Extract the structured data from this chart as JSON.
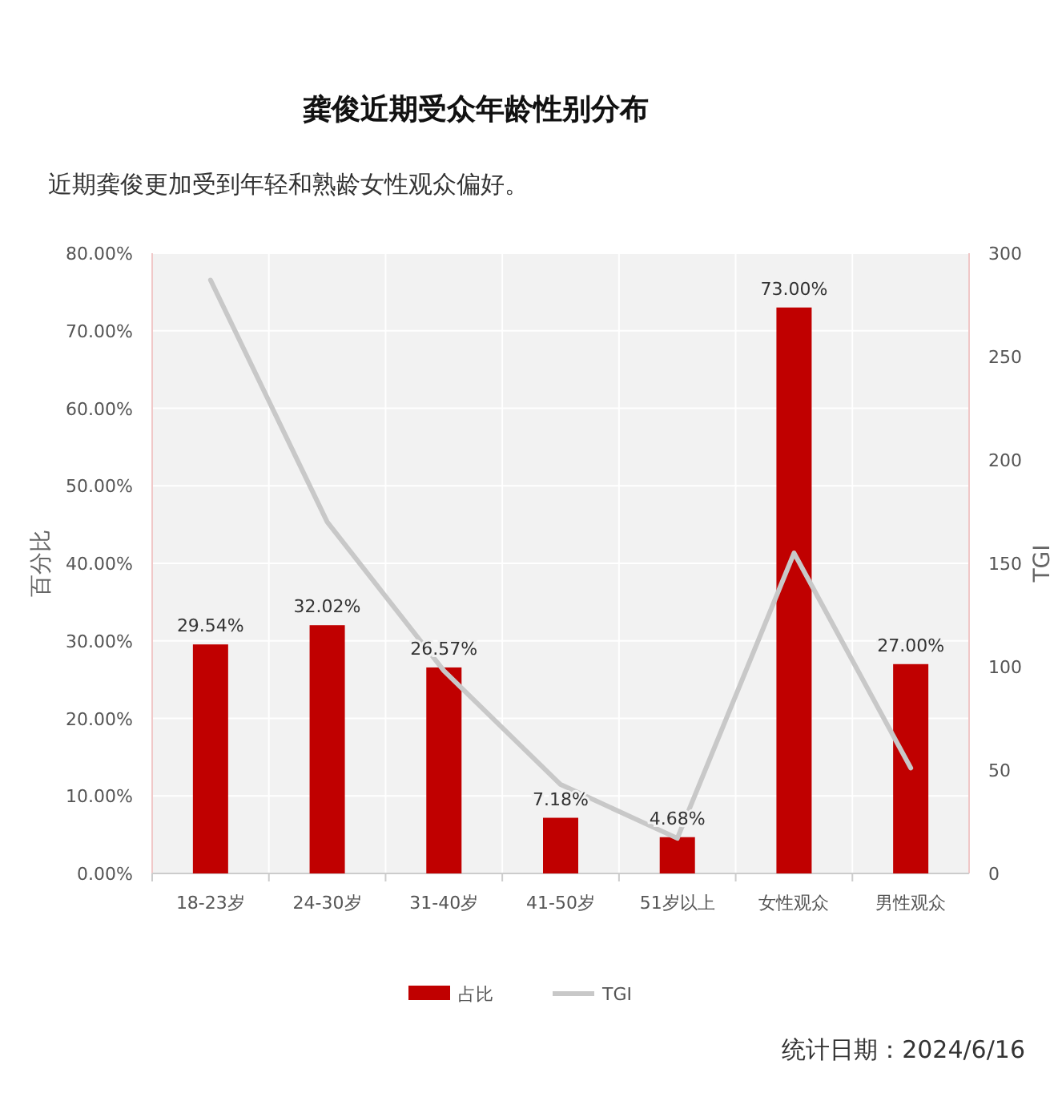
{
  "chart_data": {
    "type": "bar",
    "title": "龚俊近期受众年龄性别分布",
    "subtitle": "近期龚俊更加受到年轻和熟龄女性观众偏好。",
    "ylabel": "百分比",
    "y2label": "TGI",
    "categories": [
      "18-23岁",
      "24-30岁",
      "31-40岁",
      "41-50岁",
      "51岁以上",
      "女性观众",
      "男性观众"
    ],
    "series": [
      {
        "name": "占比",
        "color": "#c00000",
        "values": [
          29.54,
          32.02,
          26.57,
          7.18,
          4.68,
          73.0,
          27.0
        ],
        "value_labels": [
          "29.54%",
          "32.02%",
          "26.57%",
          "7.18%",
          "4.68%",
          "73.00%",
          "27.00%"
        ]
      },
      {
        "name": "TGI",
        "type": "line",
        "axis": "y2",
        "color": "#c8c8c8",
        "values": [
          287,
          170,
          98,
          43,
          17,
          155,
          51
        ]
      }
    ],
    "ylim": [
      0,
      80
    ],
    "yticks": [
      {
        "value": 0,
        "label": "0.00%"
      },
      {
        "value": 10,
        "label": "10.00%"
      },
      {
        "value": 20,
        "label": "20.00%"
      },
      {
        "value": 30,
        "label": "30.00%"
      },
      {
        "value": 40,
        "label": "40.00%"
      },
      {
        "value": 50,
        "label": "50.00%"
      },
      {
        "value": 60,
        "label": "60.00%"
      },
      {
        "value": 70,
        "label": "70.00%"
      },
      {
        "value": 80,
        "label": "80.00%"
      }
    ],
    "y2lim": [
      0,
      300
    ],
    "y2ticks": [
      0,
      50,
      100,
      150,
      200,
      250,
      300
    ],
    "grid": true,
    "legend": "bottom",
    "annotations": [
      "统计日期：2024/6/16"
    ]
  }
}
